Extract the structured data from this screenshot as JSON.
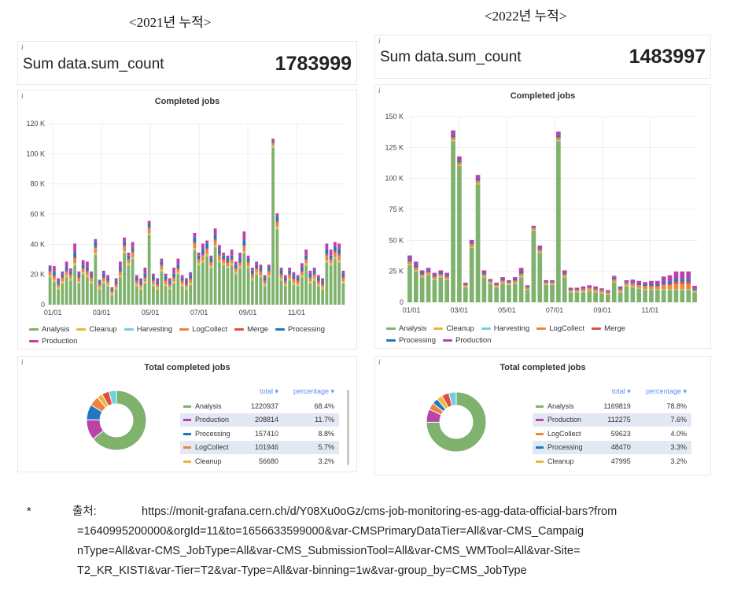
{
  "headings": {
    "left": "<2021년 누적>",
    "right": "<2022년 누적>"
  },
  "colors": {
    "Analysis": "#7eb26d",
    "Cleanup": "#eab839",
    "Harvesting": "#6ed0e0",
    "LogCollect": "#ef843c",
    "Merge": "#e24d42",
    "Processing": "#1f78c1",
    "Production": "#ba43a9"
  },
  "panels": [
    {
      "info_icon": "i",
      "stat": {
        "label": "Sum data.sum_count",
        "value": "1783999"
      },
      "chart_title": "Completed jobs",
      "pie_title": "Total completed jobs",
      "table": {
        "header": {
          "total": "total ▾",
          "percentage": "percentage ▾"
        },
        "rows": [
          {
            "name": "Analysis",
            "total": "1220937",
            "percentage": "68.4%"
          },
          {
            "name": "Production",
            "total": "208814",
            "percentage": "11.7%"
          },
          {
            "name": "Processing",
            "total": "157410",
            "percentage": "8.8%"
          },
          {
            "name": "LogCollect",
            "total": "101946",
            "percentage": "5.7%"
          },
          {
            "name": "Cleanup",
            "total": "56680",
            "percentage": "3.2%"
          }
        ]
      }
    },
    {
      "info_icon": "i",
      "stat": {
        "label": "Sum data.sum_count",
        "value": "1483997"
      },
      "chart_title": "Completed jobs",
      "pie_title": "Total completed jobs",
      "table": {
        "header": {
          "total": "total ▾",
          "percentage": "percentage ▾"
        },
        "rows": [
          {
            "name": "Analysis",
            "total": "1169819",
            "percentage": "78.8%"
          },
          {
            "name": "Production",
            "total": "112275",
            "percentage": "7.6%"
          },
          {
            "name": "LogCollect",
            "total": "59623",
            "percentage": "4.0%"
          },
          {
            "name": "Processing",
            "total": "48470",
            "percentage": "3.3%"
          },
          {
            "name": "Cleanup",
            "total": "47995",
            "percentage": "3.2%"
          }
        ]
      }
    }
  ],
  "chart_data": [
    {
      "type": "bar",
      "stacked": true,
      "title": "Completed jobs",
      "x_ticks": [
        "01/01",
        "03/01",
        "05/01",
        "07/01",
        "09/01",
        "11/01"
      ],
      "y_ticks": [
        "0",
        "20 K",
        "40 K",
        "60 K",
        "80 K",
        "100 K",
        "120 K"
      ],
      "ylim": [
        0,
        120000
      ],
      "legend_placement": "bottom",
      "series": [
        {
          "name": "Analysis",
          "values": [
            18,
            15,
            10,
            14,
            18,
            16,
            26,
            14,
            20,
            18,
            14,
            33,
            10,
            14,
            12,
            6,
            10,
            18,
            34,
            26,
            30,
            12,
            10,
            14,
            46,
            12,
            10,
            22,
            12,
            10,
            14,
            20,
            12,
            10,
            13,
            36,
            26,
            28,
            32,
            24,
            38,
            28,
            26,
            24,
            26,
            20,
            24,
            34,
            24,
            16,
            20,
            18,
            12,
            18,
            104,
            50,
            16,
            12,
            16,
            13,
            12,
            18,
            26,
            14,
            16,
            12,
            10,
            28,
            26,
            30,
            28,
            14
          ]
        },
        {
          "name": "Cleanup",
          "values": [
            1,
            1,
            1,
            1,
            1,
            1,
            1,
            1,
            1,
            1,
            1,
            1,
            1,
            1,
            1,
            1,
            1,
            1,
            1,
            1,
            1,
            1,
            1,
            1,
            1,
            1,
            1,
            1,
            1,
            1,
            1,
            1,
            1,
            1,
            1,
            1,
            1,
            1,
            1,
            1,
            1,
            1,
            1,
            1,
            1,
            1,
            1,
            1,
            1,
            1,
            1,
            1,
            1,
            1,
            1,
            1,
            1,
            1,
            1,
            1,
            1,
            1,
            1,
            1,
            1,
            1,
            1,
            1,
            1,
            1,
            1,
            1
          ]
        },
        {
          "name": "Harvesting",
          "values": [
            0.5,
            0.5,
            0.5,
            0.5,
            0.5,
            0.5,
            0.5,
            0.5,
            0.5,
            0.5,
            0.5,
            0.5,
            0.5,
            0.5,
            0.5,
            0.5,
            0.5,
            0.5,
            0.5,
            0.5,
            0.5,
            0.5,
            0.5,
            0.5,
            0.5,
            0.5,
            0.5,
            0.5,
            0.5,
            0.5,
            0.5,
            0.5,
            0.5,
            0.5,
            0.5,
            0.5,
            0.5,
            0.5,
            0.5,
            0.5,
            0.5,
            0.5,
            0.5,
            0.5,
            0.5,
            0.5,
            0.5,
            0.5,
            0.5,
            0.5,
            0.5,
            0.5,
            0.5,
            0.5,
            0.5,
            0.5,
            0.5,
            0.5,
            0.5,
            0.5,
            0.5,
            0.5,
            0.5,
            0.5,
            0.5,
            0.5,
            0.5,
            0.5,
            0.5,
            0.5,
            0.5,
            0.5
          ]
        },
        {
          "name": "LogCollect",
          "values": [
            2,
            2,
            1.5,
            2,
            2,
            2,
            3,
            2,
            2,
            2,
            2,
            3,
            1.5,
            2,
            1.5,
            1,
            1.5,
            2,
            3,
            2,
            3,
            1.5,
            1.5,
            2,
            3,
            2,
            1.5,
            2,
            2,
            1.5,
            2,
            2,
            1.5,
            1.5,
            2,
            3,
            2,
            3,
            3,
            2,
            3,
            3,
            2,
            2,
            2,
            2,
            2,
            3,
            2,
            2,
            2,
            2,
            1.5,
            2,
            1.5,
            3,
            2,
            1.5,
            2,
            2,
            1.5,
            2,
            2,
            2,
            2,
            1.5,
            1.5,
            3,
            2,
            3,
            3,
            2
          ]
        },
        {
          "name": "Merge",
          "values": [
            1,
            1,
            1,
            1,
            1,
            1,
            1,
            1,
            1,
            1,
            1,
            1,
            1,
            1,
            1,
            1,
            1,
            1,
            1,
            1,
            1,
            1,
            1,
            1,
            1,
            1,
            1,
            1,
            1,
            1,
            1,
            1,
            1,
            1,
            1,
            1,
            1,
            1,
            1,
            1,
            1,
            1,
            1,
            1,
            1,
            1,
            1,
            1,
            1,
            1,
            1,
            1,
            1,
            1,
            1,
            1,
            1,
            1,
            1,
            1,
            1,
            1,
            1,
            1,
            1,
            1,
            1,
            1,
            1,
            1,
            1,
            1
          ]
        },
        {
          "name": "Processing",
          "values": [
            1.5,
            2,
            1.5,
            1.5,
            2,
            1.5,
            3,
            1.5,
            2,
            2,
            1.5,
            3,
            1.5,
            2,
            1.5,
            1,
            1.5,
            2,
            2,
            2,
            2,
            1.5,
            1.5,
            2,
            2,
            2,
            1.5,
            2,
            2,
            1.5,
            2,
            2,
            1.5,
            1.5,
            2,
            3,
            2,
            3,
            3,
            2,
            3,
            2,
            2,
            2,
            2,
            2,
            2,
            3,
            2,
            2,
            2,
            2,
            1.5,
            2,
            1,
            3,
            2,
            1.5,
            2,
            2,
            1.5,
            2,
            2,
            2,
            2,
            1.5,
            1.5,
            3,
            2,
            3,
            3,
            2
          ]
        },
        {
          "name": "Production",
          "values": [
            2,
            4,
            2,
            2,
            4,
            2,
            6,
            2,
            3,
            4,
            2,
            2,
            1,
            2,
            2,
            1,
            2,
            4,
            3,
            2,
            4,
            2,
            2,
            4,
            2,
            2,
            2,
            2,
            2,
            2,
            4,
            4,
            2,
            2,
            2,
            3,
            2,
            4,
            2,
            2,
            4,
            4,
            2,
            2,
            4,
            2,
            4,
            6,
            2,
            2,
            2,
            2,
            2,
            2,
            1,
            2,
            2,
            2,
            2,
            2,
            2,
            3,
            4,
            2,
            2,
            2,
            2,
            4,
            4,
            3,
            4,
            2
          ]
        }
      ]
    },
    {
      "type": "bar",
      "stacked": true,
      "title": "Completed jobs",
      "x_ticks": [
        "01/01",
        "03/01",
        "05/01",
        "07/01",
        "09/01",
        "11/01"
      ],
      "y_ticks": [
        "0",
        "25 K",
        "50 K",
        "75 K",
        "100 K",
        "125 K",
        "150 K"
      ],
      "ylim": [
        0,
        150000
      ],
      "legend_placement": "bottom",
      "series": [
        {
          "name": "Analysis",
          "values": [
            30,
            25,
            20,
            22,
            18,
            20,
            18,
            130,
            110,
            12,
            44,
            95,
            20,
            15,
            12,
            15,
            14,
            15,
            20,
            10,
            58,
            40,
            14,
            14,
            130,
            20,
            8,
            8,
            8,
            9,
            8,
            7,
            6,
            16,
            8,
            13,
            12,
            11,
            10,
            10,
            10,
            10,
            10,
            10,
            10,
            10,
            8
          ]
        },
        {
          "name": "Cleanup",
          "values": [
            0.5,
            0.5,
            0.5,
            0.5,
            0.5,
            0.5,
            0.5,
            0.5,
            0.5,
            0.5,
            0.5,
            0.5,
            0.5,
            0.5,
            0.5,
            0.5,
            0.5,
            0.5,
            0.5,
            0.5,
            0.5,
            0.5,
            0.5,
            0.5,
            0.5,
            0.5,
            0.5,
            0.5,
            0.5,
            0.5,
            0.5,
            0.5,
            0.5,
            0.5,
            0.5,
            0.5,
            0.5,
            0.5,
            0.5,
            0.5,
            0.5,
            0.5,
            0.5,
            0.5,
            0.5,
            0.5,
            0.5
          ]
        },
        {
          "name": "Harvesting",
          "values": [
            0.3,
            0.3,
            0.3,
            0.3,
            0.3,
            0.3,
            0.3,
            0.3,
            0.3,
            0.3,
            0.3,
            0.3,
            0.3,
            0.3,
            0.3,
            0.3,
            0.3,
            0.3,
            0.3,
            0.3,
            0.3,
            0.3,
            0.3,
            0.3,
            0.3,
            0.3,
            0.3,
            0.3,
            0.3,
            0.3,
            0.3,
            0.3,
            0.3,
            0.3,
            0.3,
            0.3,
            0.3,
            0.3,
            0.3,
            0.3,
            0.3,
            0.3,
            0.3,
            0.3,
            0.3,
            0.3,
            0.3
          ]
        },
        {
          "name": "LogCollect",
          "values": [
            2,
            2,
            1.5,
            1.5,
            1.5,
            1.5,
            1.5,
            2,
            2,
            1,
            2,
            2,
            1.5,
            1,
            1,
            1.5,
            1,
            1.5,
            2,
            1,
            1,
            1.5,
            1,
            1,
            2,
            1.5,
            1,
            1,
            1.5,
            1.5,
            1.5,
            1.5,
            1,
            1.5,
            1.5,
            1.5,
            2,
            2,
            2,
            2,
            2,
            3,
            3,
            4,
            4,
            4,
            1
          ]
        },
        {
          "name": "Merge",
          "values": [
            0.5,
            0.5,
            0.5,
            0.5,
            0.5,
            0.5,
            0.5,
            0.5,
            0.5,
            0.5,
            0.5,
            0.5,
            0.5,
            0.5,
            0.5,
            0.5,
            0.5,
            0.5,
            0.5,
            0.5,
            0.5,
            0.5,
            0.5,
            0.5,
            0.5,
            0.5,
            0.5,
            0.5,
            0.5,
            0.5,
            0.5,
            0.5,
            0.5,
            0.5,
            0.5,
            0.5,
            0.5,
            0.5,
            0.5,
            0.5,
            0.5,
            1,
            1,
            2,
            2,
            2,
            0.5
          ]
        },
        {
          "name": "Processing",
          "values": [
            1.5,
            1.5,
            1,
            1,
            1,
            1,
            1,
            1.5,
            1.5,
            0.5,
            1,
            1.5,
            1,
            0.5,
            0.5,
            1,
            0.5,
            1,
            1.5,
            0.5,
            0.5,
            1,
            0.5,
            0.5,
            1.5,
            1,
            0.5,
            0.5,
            0.5,
            0.5,
            0.5,
            0.5,
            0.5,
            1,
            0.5,
            0.5,
            1,
            1,
            1,
            1,
            1,
            2,
            2,
            2,
            2,
            2,
            1
          ]
        },
        {
          "name": "Production",
          "values": [
            3,
            3,
            2,
            2,
            2,
            2,
            2,
            4,
            3,
            1,
            2,
            3,
            2,
            1,
            1,
            1.5,
            1,
            1.5,
            3,
            1,
            1,
            2,
            1,
            1,
            3,
            2,
            1,
            1,
            1.5,
            1.5,
            1.5,
            1,
            1,
            1.5,
            1.5,
            1.5,
            2,
            2,
            2,
            3,
            3,
            4,
            5,
            6,
            6,
            6,
            2
          ]
        }
      ]
    },
    {
      "type": "pie",
      "title": "Total completed jobs",
      "categories": [
        "Analysis",
        "Production",
        "Processing",
        "LogCollect",
        "Cleanup"
      ],
      "values": [
        1220937,
        208814,
        157410,
        101946,
        56680
      ]
    },
    {
      "type": "pie",
      "title": "Total completed jobs",
      "categories": [
        "Analysis",
        "Production",
        "LogCollect",
        "Processing",
        "Cleanup"
      ],
      "values": [
        1169819,
        112275,
        59623,
        48470,
        47995
      ]
    }
  ],
  "legend": [
    "Analysis",
    "Cleanup",
    "Harvesting",
    "LogCollect",
    "Merge",
    "Processing",
    "Production"
  ],
  "footnote": {
    "star": "*",
    "label": "출처:",
    "lines": [
      "https://monit-grafana.cern.ch/d/Y08Xu0oGz/cms-job-monitoring-es-agg-data-official-bars?from",
      "=1640995200000&orgId=11&to=1656633599000&var-CMSPrimaryDataTier=All&var-CMS_Campaig",
      "nType=All&var-CMS_JobType=All&var-CMS_SubmissionTool=All&var-CMS_WMTool=All&var-Site=",
      "T2_KR_KISTI&var-Tier=T2&var-Type=All&var-binning=1w&var-group_by=CMS_JobType"
    ]
  }
}
